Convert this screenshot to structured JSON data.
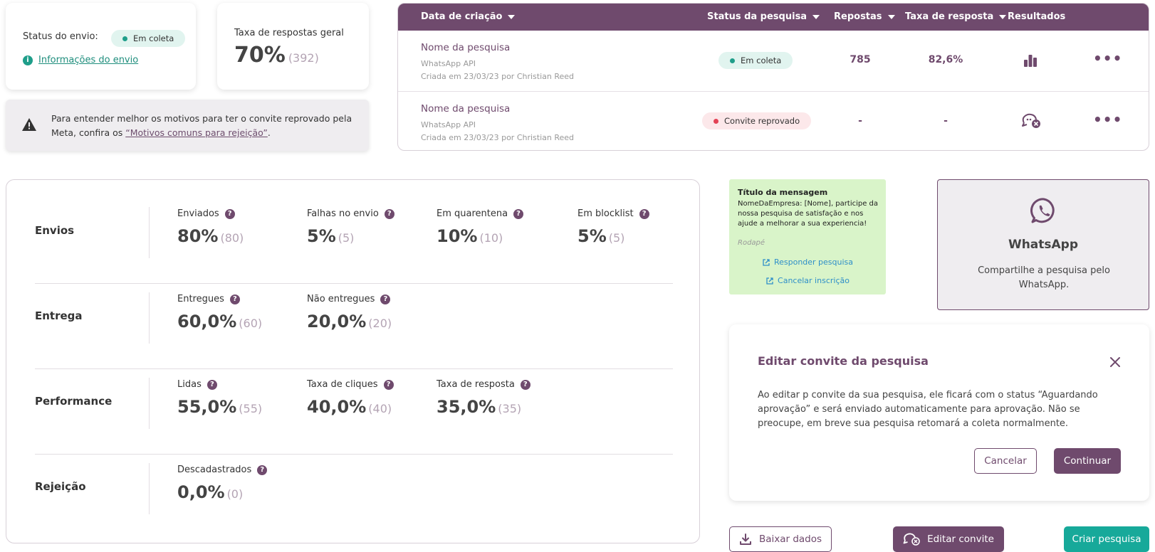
{
  "status_card": {
    "label": "Status do envio:",
    "badge": "Em coleta",
    "info_link": "Informações do envio"
  },
  "rate_card": {
    "label": "Taxa de respostas geral",
    "value": "70%",
    "count": "(392)"
  },
  "warning": {
    "text": "Para entender melhor os motivos para ter o convite reprovado pela Meta, confira os ",
    "link": "“Motivos comuns para rejeição”",
    "suffix": "."
  },
  "table": {
    "headers": {
      "created": "Data de criação",
      "status": "Status da pesquisa",
      "responses": "Repostas",
      "rate": "Taxa de resposta",
      "results": "Resultados"
    },
    "rows": [
      {
        "name": "Nome da pesquisa",
        "channel": "WhatsApp API",
        "created": "Criada em 23/03/23 por Christian Reed",
        "status": "Em coleta",
        "responses": "785",
        "rate": "82,6%",
        "results_icon": "bar-chart-icon",
        "menu": "•••"
      },
      {
        "name": "Nome da pesquisa",
        "channel": "WhatsApp API",
        "created": "Criada em 23/03/23 por Christian Reed",
        "status": "Convite reprovado",
        "responses": "-",
        "rate": "-",
        "results_icon": "chat-error-icon",
        "menu": "•••"
      }
    ]
  },
  "metrics": {
    "rows": [
      {
        "title": "Envios",
        "items": [
          {
            "label": "Enviados",
            "value": "80%",
            "count": "(80)"
          },
          {
            "label": "Falhas no envio",
            "value": "5%",
            "count": "(5)"
          },
          {
            "label": "Em quarentena",
            "value": "10%",
            "count": "(10)"
          },
          {
            "label": "Em blocklist",
            "value": "5%",
            "count": "(5)"
          }
        ]
      },
      {
        "title": "Entrega",
        "items": [
          {
            "label": "Entregues",
            "value": "60,0%",
            "count": "(60)"
          },
          {
            "label": "Não entregues",
            "value": "20,0%",
            "count": "(20)"
          }
        ]
      },
      {
        "title": "Performance",
        "items": [
          {
            "label": "Lidas",
            "value": "55,0%",
            "count": "(55)"
          },
          {
            "label": "Taxa de cliques",
            "value": "40,0%",
            "count": "(40)"
          },
          {
            "label": "Taxa de resposta",
            "value": "35,0%",
            "count": "(35)"
          }
        ]
      },
      {
        "title": "Rejeição",
        "items": [
          {
            "label": "Descadastrados",
            "value": "0,0%",
            "count": "(0)"
          }
        ]
      }
    ],
    "help_glyph": "?"
  },
  "preview": {
    "title": "Título da mensagem",
    "body": "NomeDaEmpresa: [Nome], participe da nossa pesquisa de satisfação e nos ajude a melhorar a sua experiencia!",
    "footer": "Rodapé",
    "link_respond": "Responder pesquisa",
    "link_cancel": "Cancelar inscrição"
  },
  "whatsapp": {
    "title": "WhatsApp",
    "description": "Compartilhe a pesquisa pelo WhatsApp."
  },
  "modal": {
    "title": "Editar convite da pesquisa",
    "body": "Ao editar p convite da sua pesquisa, ele ficará com o status “Aguardando aprovação” e será enviado automaticamente para aprovação. Não se preocupe, em breve sua pesquisa retomará a coleta normalmente.",
    "cancel": "Cancelar",
    "continue": "Continuar"
  },
  "actions": {
    "download": "Baixar dados",
    "edit": "Editar convite",
    "create": "Criar pesquisa"
  },
  "colors": {
    "primary": "#6f4a6d",
    "teal": "#17a99a",
    "success": "#1f9e8a",
    "error": "#e34255"
  }
}
